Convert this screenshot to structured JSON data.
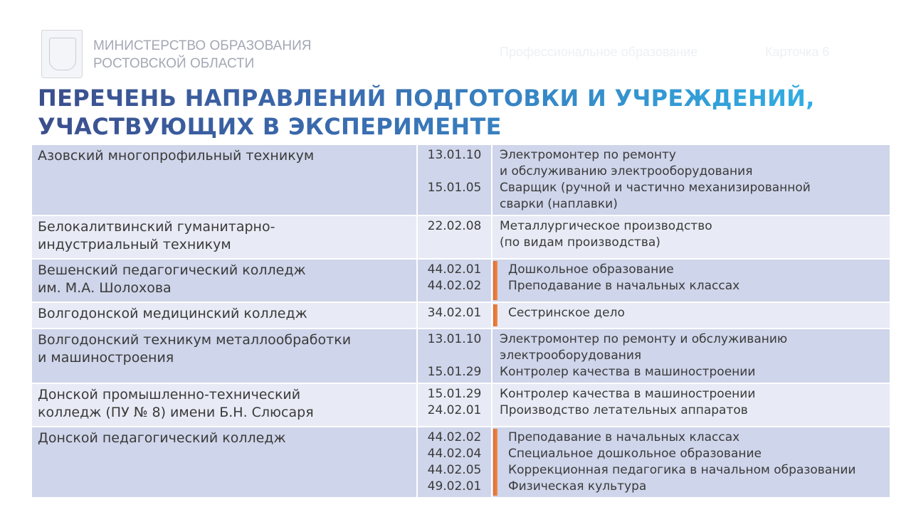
{
  "header": {
    "ministry_line1": "МИНИСТЕРСТВО ОБРАЗОВАНИЯ",
    "ministry_line2": "РОСТОВСКОЙ ОБЛАСТИ",
    "section": "Профессиональное образование",
    "card": "Карточка 6"
  },
  "title": {
    "line1": "ПЕРЕЧЕНЬ НАПРАВЛЕНИЙ ПОДГОТОВКИ И УЧРЕЖДЕНИЙ,",
    "line2": "УЧАСТВУЮЩИХ В ЭКСПЕРИМЕНТЕ"
  },
  "rows": [
    {
      "institution": [
        "Азовский многопрофильный техникум"
      ],
      "codes": [
        "13.01.10",
        "",
        "15.01.05"
      ],
      "programs": [
        "Электромонтер по ремонту",
        "и обслуживанию электрооборудования",
        "Сварщик (ручной и частично механизированной",
        "сварки (наплавки)"
      ]
    },
    {
      "institution": [
        "Белокалитвинский гуманитарно-",
        "индустриальный техникум"
      ],
      "codes": [
        "22.02.08"
      ],
      "programs": [
        "Металлургическое производство",
        "(по видам производства)"
      ]
    },
    {
      "institution": [
        "Вешенский педагогический колледж",
        "им. М.А. Шолохова"
      ],
      "codes": [
        "44.02.01",
        "44.02.02"
      ],
      "programs": [
        "Дошкольное образование",
        "Преподавание в начальных классах"
      ]
    },
    {
      "institution": [
        "Волгодонской медицинский колледж"
      ],
      "codes": [
        "34.02.01"
      ],
      "programs": [
        "Сестринское дело"
      ]
    },
    {
      "institution": [
        "Волгодонский техникум металлообработки",
        "и машиностроения"
      ],
      "codes": [
        "13.01.10",
        "",
        "15.01.29"
      ],
      "programs": [
        "Электромонтер по ремонту и обслуживанию",
        "электрооборудования",
        "Контролер качества в машиностроении"
      ]
    },
    {
      "institution": [
        "Донской промышленно-технический",
        "колледж (ПУ № 8) имени Б.Н. Слюсаря"
      ],
      "codes": [
        "15.01.29",
        "24.02.01"
      ],
      "programs": [
        "Контролер качества в машиностроении",
        "Производство летательных аппаратов"
      ]
    },
    {
      "institution": [
        "Донской педагогический колледж"
      ],
      "codes": [
        "44.02.02",
        "44.02.04",
        "44.02.05",
        "49.02.01"
      ],
      "programs": [
        "Преподавание в начальных классах",
        "Специальное дошкольное образование",
        "Коррекционная педагогика в начальном образовании",
        "Физическая культура"
      ]
    }
  ],
  "colors": {
    "row_dark": "#cfd5ea",
    "row_light": "#e8ebf5",
    "accent_bar": "#e26a2c",
    "title_dark": "#3b4e8c",
    "title_light": "#31aee4"
  }
}
